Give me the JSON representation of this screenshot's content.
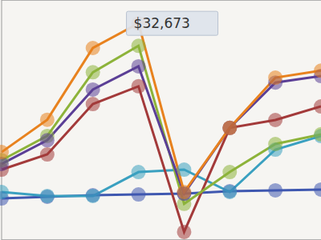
{
  "chart_data": {
    "type": "line",
    "categories": [
      null,
      null,
      null,
      null,
      null,
      null,
      null,
      null
    ],
    "series": [
      {
        "color": "#3f58b0",
        "values": [
          210,
          510,
          800,
          950,
          1100,
          1550,
          1700,
          1850
        ]
      },
      {
        "color": "#3aa0c0",
        "values": [
          1400,
          660,
          660,
          5100,
          5550,
          1400,
          9260,
          11780
        ]
      },
      {
        "color": "#a33a3a",
        "values": [
          5550,
          8370,
          17700,
          21000,
          -6000,
          13300,
          14750,
          17270
        ]
      },
      {
        "color": "#8db33a",
        "values": [
          7300,
          11800,
          23600,
          28500,
          -800,
          5100,
          10300,
          12100
        ]
      },
      {
        "color": "#5b3f96",
        "values": [
          6600,
          11000,
          20400,
          24700,
          1100,
          13300,
          21700,
          22900
        ]
      },
      {
        "color": "#e8821e",
        "values": [
          8800,
          14800,
          28100,
          32673,
          1400,
          13300,
          22600,
          23900
        ],
        "value_labels": [
          null,
          null,
          null,
          "$32,673",
          null,
          null,
          null,
          null
        ]
      }
    ],
    "ylim": [
      -7500,
      37000
    ],
    "yticks": [
      0,
      12500,
      25000
    ],
    "grid": true,
    "tick_labels": false,
    "marker": "circle"
  }
}
